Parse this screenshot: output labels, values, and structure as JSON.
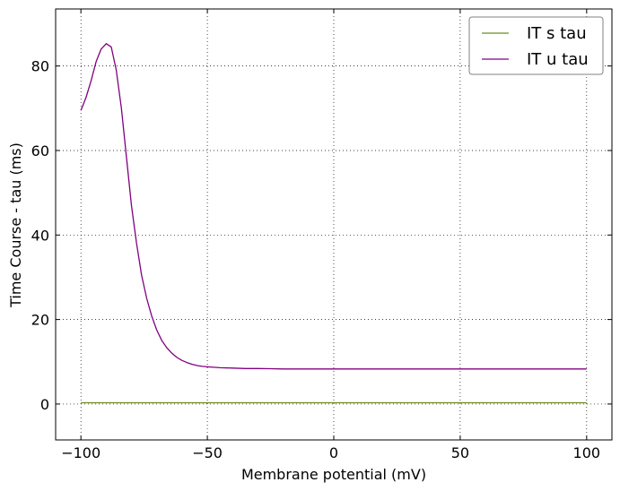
{
  "chart_data": {
    "type": "line",
    "title": "",
    "xlabel": "Membrane potential (mV)",
    "ylabel": "Time Course - tau (ms)",
    "xlim": [
      -110,
      110
    ],
    "ylim": [
      -8.5,
      93.5
    ],
    "xticks": [
      -100,
      -50,
      0,
      50,
      100
    ],
    "xtick_labels": [
      "−100",
      "−50",
      "0",
      "50",
      "100"
    ],
    "yticks": [
      0,
      20,
      40,
      60,
      80
    ],
    "ytick_labels": [
      "0",
      "20",
      "40",
      "60",
      "80"
    ],
    "grid": true,
    "legend_position": "top-right",
    "x": [
      -100,
      -98,
      -96,
      -94,
      -92,
      -90,
      -88,
      -86,
      -84,
      -82,
      -80,
      -78,
      -76,
      -74,
      -72,
      -70,
      -68,
      -66,
      -64,
      -62,
      -60,
      -58,
      -56,
      -54,
      -52,
      -50,
      -45,
      -40,
      -35,
      -30,
      -25,
      -20,
      -10,
      0,
      25,
      50,
      75,
      100
    ],
    "series": [
      {
        "name": "IT s tau",
        "color": "#6b8e23",
        "values": [
          0.3,
          0.3,
          0.3,
          0.3,
          0.3,
          0.3,
          0.3,
          0.3,
          0.3,
          0.3,
          0.3,
          0.3,
          0.3,
          0.3,
          0.3,
          0.3,
          0.3,
          0.3,
          0.3,
          0.3,
          0.3,
          0.3,
          0.3,
          0.3,
          0.3,
          0.3,
          0.3,
          0.3,
          0.3,
          0.3,
          0.3,
          0.3,
          0.3,
          0.3,
          0.3,
          0.3,
          0.3,
          0.3
        ]
      },
      {
        "name": "IT u tau",
        "color": "#800080",
        "values": [
          69.5,
          72.5,
          76.5,
          81.0,
          84.0,
          85.3,
          84.5,
          79.0,
          70.0,
          58.5,
          47.0,
          38.0,
          30.5,
          25.0,
          20.8,
          17.5,
          15.0,
          13.3,
          12.0,
          11.0,
          10.3,
          9.8,
          9.4,
          9.1,
          8.9,
          8.8,
          8.6,
          8.5,
          8.4,
          8.4,
          8.35,
          8.3,
          8.3,
          8.3,
          8.3,
          8.3,
          8.3,
          8.3
        ]
      }
    ]
  }
}
